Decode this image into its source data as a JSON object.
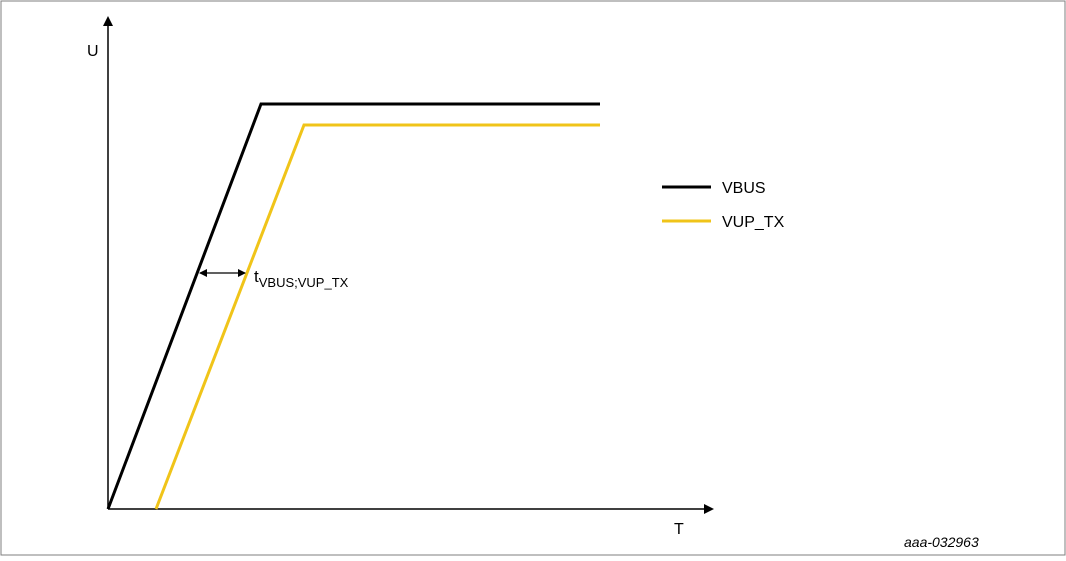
{
  "diagram": {
    "axis_y_label": "U",
    "axis_x_label": "T",
    "legend": [
      {
        "label": "VBUS",
        "color": "#000000"
      },
      {
        "label": "VUP_TX",
        "color": "#F0C419"
      }
    ],
    "annotation": {
      "main": "t",
      "subscript": "VBUS;VUP_TX"
    },
    "figure_id": "aaa-032963"
  }
}
